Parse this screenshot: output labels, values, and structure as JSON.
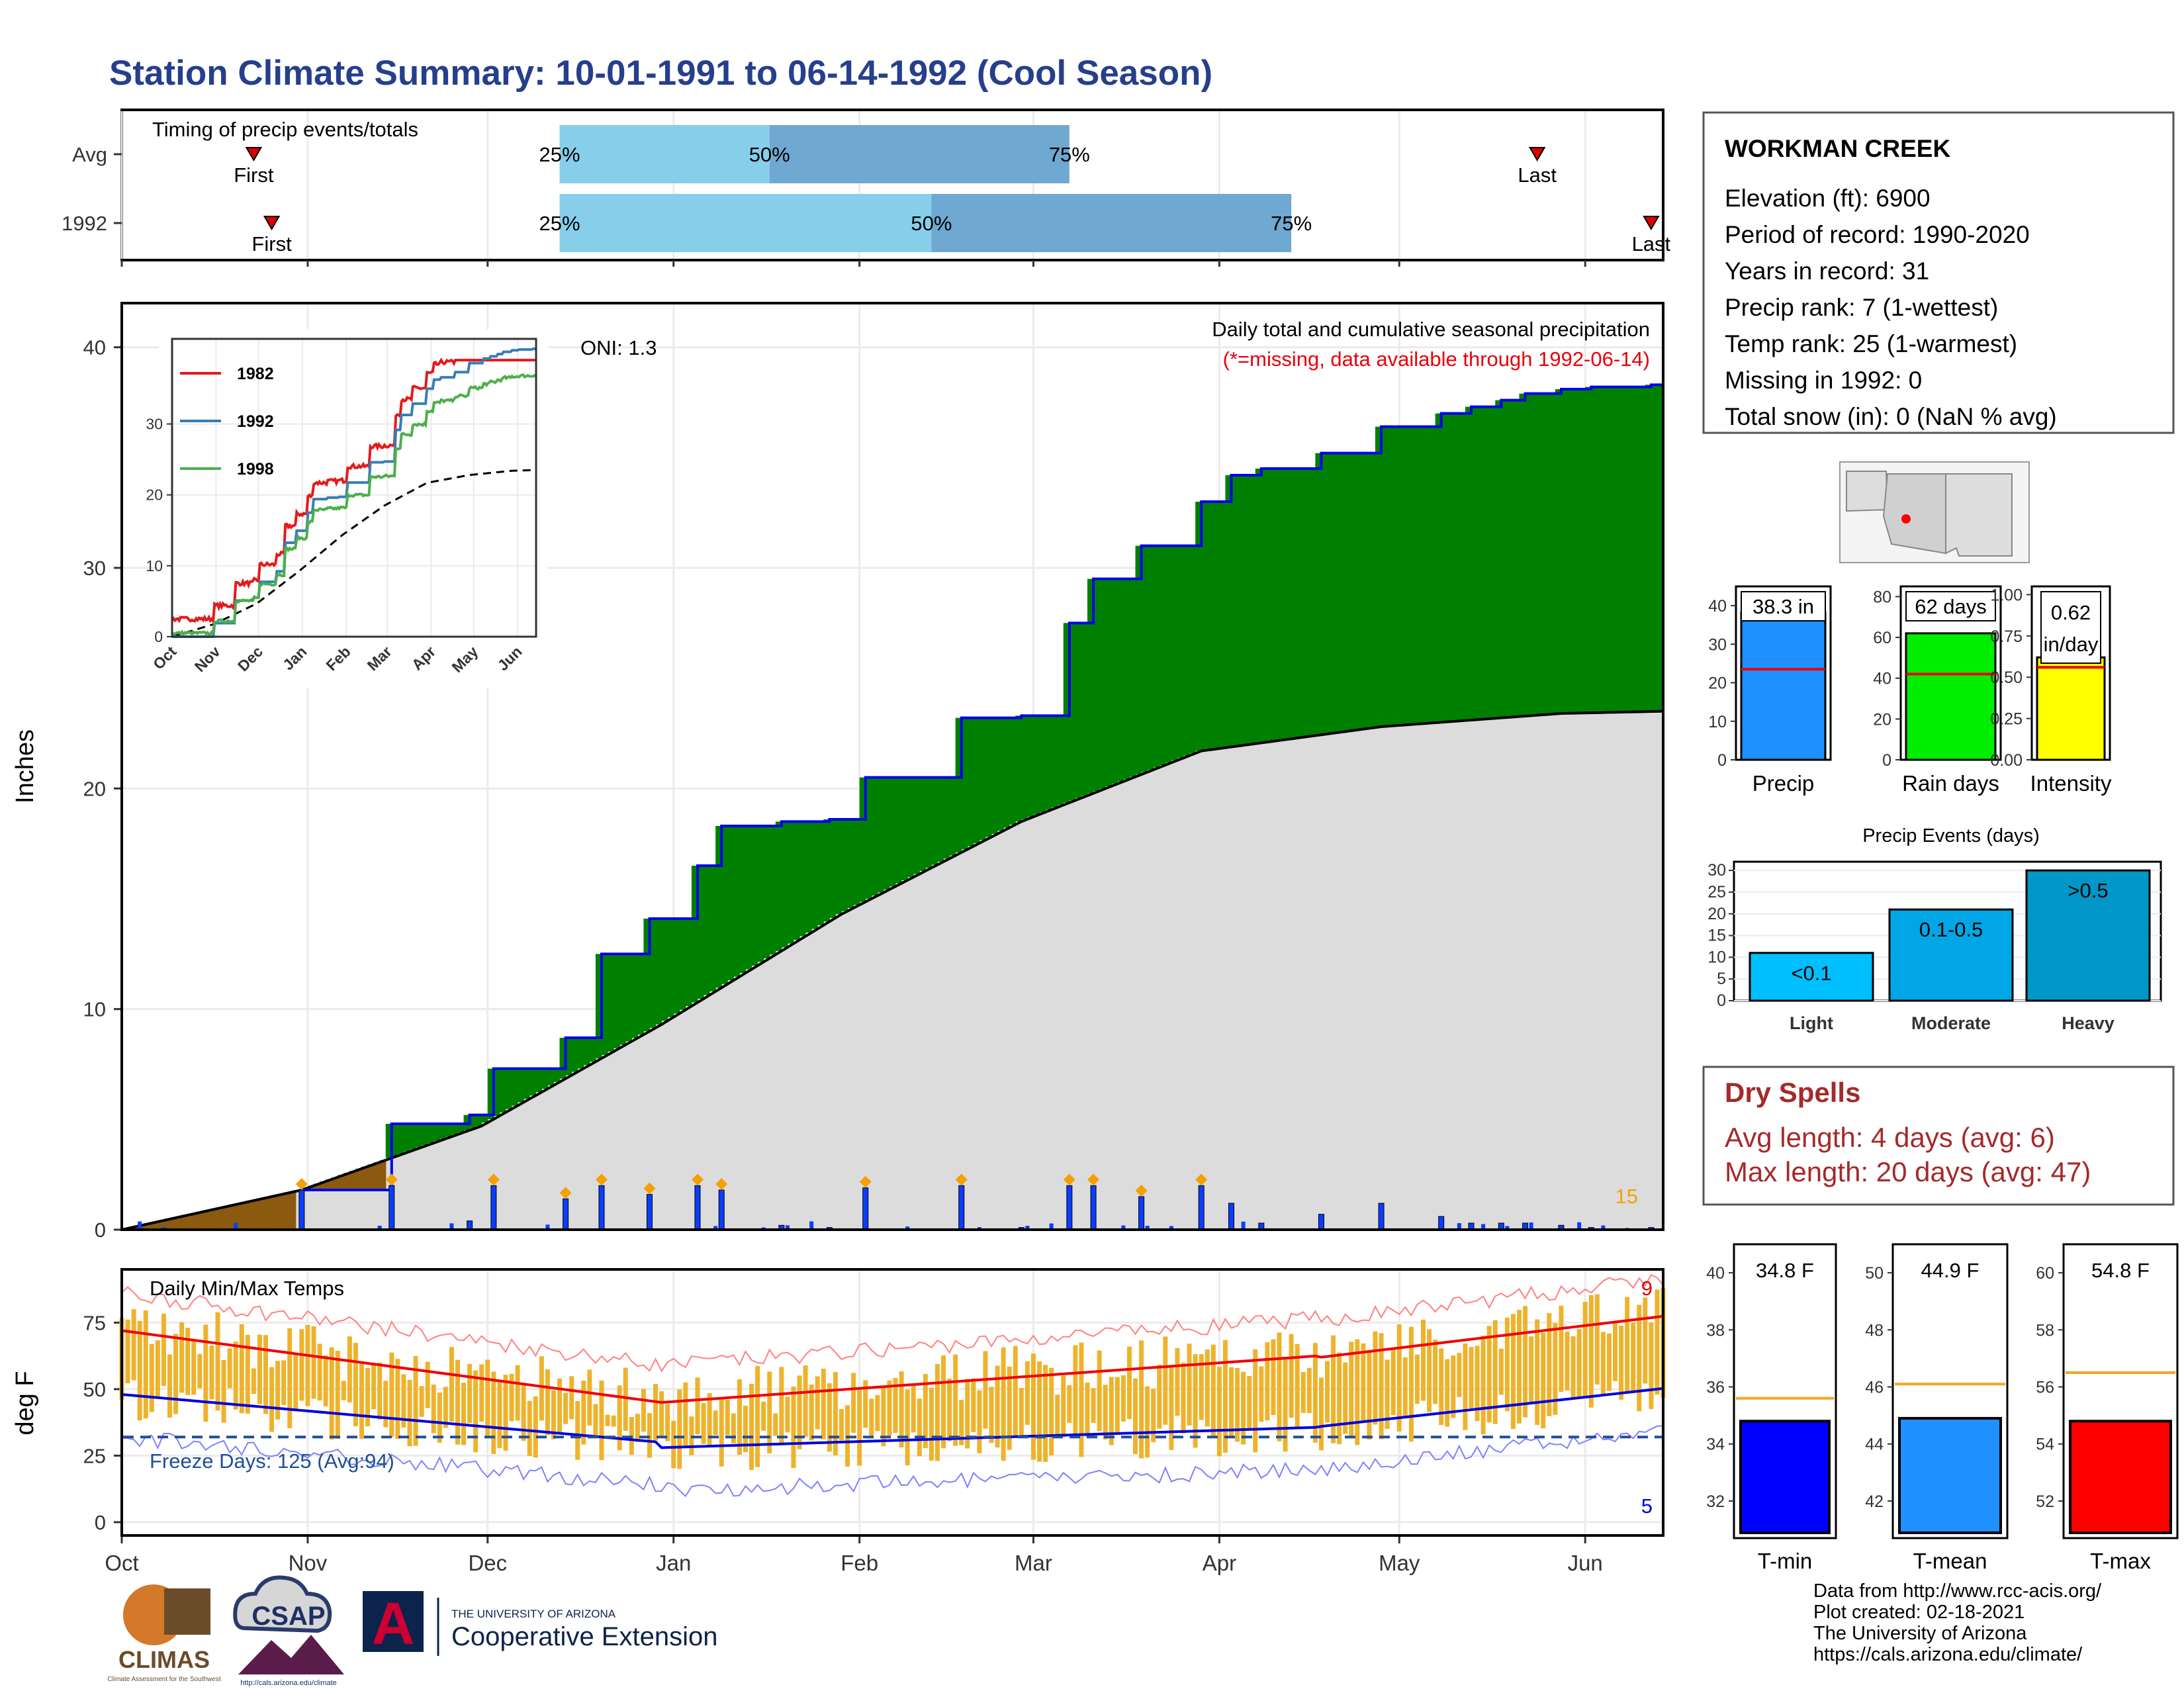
{
  "title": "Station Climate Summary: 10-01-1991 to 06-14-1992 (Cool Season)",
  "timing_panel": {
    "label": "Timing of precip events/totals",
    "rows": [
      {
        "name": "Avg",
        "first_label": "First",
        "first_doy": 22,
        "last_label": "Last",
        "last_doy": 236,
        "p25_doy": 73,
        "p50_doy": 108,
        "p75_doy": 158,
        "p25_label": "25%",
        "p50_label": "50%",
        "p75_label": "75%"
      },
      {
        "name": "1992",
        "first_label": "First",
        "first_doy": 25,
        "last_label": "Last",
        "last_doy": 255,
        "p25_doy": 73,
        "p50_doy": 135,
        "p75_doy": 195,
        "p25_label": "25%",
        "p50_label": "50%",
        "p75_label": "75%"
      }
    ]
  },
  "precip_panel": {
    "ylabel": "Inches",
    "ylim": [
      0,
      42
    ],
    "yticks": [
      0,
      10,
      20,
      30,
      40
    ],
    "caption": "Daily total and cumulative seasonal precipitation",
    "missing_note": "(*=missing, data available through 1992-06-14)",
    "oni_label": "ONI: 1.3",
    "corner_count": "15",
    "colors": {
      "above": "#008000",
      "below": "#8B5A0F",
      "normal": "#dcdcdc",
      "line": "#0000ee",
      "avg": "#000000",
      "daily": "#0b3dff",
      "marker": "#f5a000"
    }
  },
  "inset_chart": {
    "ylim": [
      0,
      42
    ],
    "yticks": [
      0,
      10,
      20,
      30
    ],
    "months": [
      "Oct",
      "Nov",
      "Dec",
      "Jan",
      "Feb",
      "Mar",
      "Apr",
      "May",
      "Jun"
    ],
    "series": [
      {
        "name": "1982",
        "color": "#e41a1c"
      },
      {
        "name": "1992",
        "color": "#377eb8"
      },
      {
        "name": "1998",
        "color": "#4daf4a"
      }
    ]
  },
  "temp_panel": {
    "ylabel": "deg F",
    "ylim": [
      -5,
      95
    ],
    "yticks": [
      0,
      25,
      50,
      75
    ],
    "label": "Daily Min/Max Temps",
    "freeze_label": "Freeze Days: 125 (Avg:94)",
    "freeze_line": 32,
    "count_hot": "9",
    "count_cold": "5"
  },
  "x_axis": {
    "months": [
      {
        "label": "Oct",
        "doy": 0
      },
      {
        "label": "Nov",
        "doy": 31
      },
      {
        "label": "Dec",
        "doy": 61
      },
      {
        "label": "Jan",
        "doy": 92
      },
      {
        "label": "Feb",
        "doy": 123
      },
      {
        "label": "Mar",
        "doy": 152
      },
      {
        "label": "Apr",
        "doy": 183
      },
      {
        "label": "May",
        "doy": 213
      },
      {
        "label": "Jun",
        "doy": 244
      }
    ]
  },
  "station": {
    "name": "WORKMAN CREEK",
    "lines": [
      "Elevation (ft): 6900",
      "Period of record: 1990-2020",
      "Years in record: 31",
      "Precip rank: 7 (1-wettest)",
      "Temp rank: 25 (1-warmest)",
      "Missing in 1992: 0",
      "Total snow (in): 0 (NaN % avg)"
    ]
  },
  "summary_bars": [
    {
      "name": "Precip",
      "value": 38.3,
      "label": "38.3 in",
      "avg": 23.5,
      "ylim": [
        0,
        45
      ],
      "yticks": [
        "0",
        "10",
        "20",
        "30",
        "40"
      ],
      "ytick_values": [
        0,
        10,
        20,
        30,
        40
      ],
      "color": "#1e90ff"
    },
    {
      "name": "Rain days",
      "value": 62,
      "label": "62 days",
      "avg": 42,
      "ylim": [
        0,
        85
      ],
      "yticks": [
        "0",
        "20",
        "40",
        "60",
        "80"
      ],
      "ytick_values": [
        0,
        20,
        40,
        60,
        80
      ],
      "color": "#00ee00"
    },
    {
      "name": "Intensity",
      "value": 0.62,
      "label": "0.62 in/day",
      "label_line1": "0.62",
      "label_line2": "in/day",
      "avg": 0.56,
      "ylim": [
        0,
        1.05
      ],
      "yticks": [
        "0.00",
        "0.25",
        "0.50",
        "0.75",
        "1.00"
      ],
      "ytick_values": [
        0,
        0.25,
        0.5,
        0.75,
        1.0
      ],
      "color": "#ffff00"
    }
  ],
  "precip_events": {
    "title": "Precip Events (days)",
    "ylim": [
      0,
      32
    ],
    "yticks": [
      "0",
      "5",
      "10",
      "15",
      "20",
      "25",
      "30"
    ],
    "ytick_values": [
      0,
      5,
      10,
      15,
      20,
      25,
      30
    ],
    "categories": [
      "Light",
      "Moderate",
      "Heavy"
    ],
    "bar_labels": [
      "<0.1",
      "0.1-0.5",
      ">0.5"
    ],
    "values": [
      11,
      21,
      30
    ],
    "colors": [
      "#00bfff",
      "#00a6e6",
      "#0096c8"
    ]
  },
  "dry_spells": {
    "title": "Dry Spells",
    "avg_line": "Avg length: 4 days (avg: 6)",
    "max_line": "Max length: 20 days (avg: 47)"
  },
  "temp_bars": [
    {
      "name": "T-min",
      "value": 34.8,
      "label": "34.8 F",
      "avg": 35.6,
      "ylim": [
        30.7,
        41
      ],
      "yticks": [
        "32",
        "34",
        "36",
        "38",
        "40"
      ],
      "ytick_values": [
        32,
        34,
        36,
        38,
        40
      ],
      "color": "#0000ff"
    },
    {
      "name": "T-mean",
      "value": 44.9,
      "label": "44.9 F",
      "avg": 46.1,
      "ylim": [
        40.7,
        51
      ],
      "yticks": [
        "42",
        "44",
        "46",
        "48",
        "50"
      ],
      "ytick_values": [
        42,
        44,
        46,
        48,
        50
      ],
      "color": "#1e90ff"
    },
    {
      "name": "T-max",
      "value": 54.8,
      "label": "54.8 F",
      "avg": 56.5,
      "ylim": [
        50.7,
        61
      ],
      "yticks": [
        "52",
        "54",
        "56",
        "58",
        "60"
      ],
      "ytick_values": [
        52,
        54,
        56,
        58,
        60
      ],
      "color": "#ff0000"
    }
  ],
  "footer": {
    "lines": [
      "Data from http://www.rcc-acis.org/",
      "Plot created: 02-18-2021",
      "The University of Arizona",
      "https://cals.arizona.edu/climate/"
    ],
    "logos": {
      "climas": "CLIMAS",
      "climas_sub": "Climate Assessment for the Southwest",
      "csap": "CSAP",
      "csap_url": "http://cals.arizona.edu/climate",
      "ua_small": "THE UNIVERSITY OF ARIZONA",
      "ua_big": "Cooperative Extension",
      "ua_letter": "A"
    }
  },
  "chart_data": {
    "type": "area",
    "title": "Station Climate Summary: 10-01-1991 to 06-14-1992 (Cool Season)",
    "ylabel": "Inches",
    "ylim": [
      0,
      42
    ],
    "x_unit": "day of season (0 = Oct 1)",
    "series": [
      {
        "name": "1992",
        "x": [
          0,
          30,
          45,
          58,
          62,
          74,
          80,
          88,
          96,
          100,
          110,
          118,
          124,
          140,
          150,
          158,
          162,
          170,
          180,
          185,
          190,
          200,
          210,
          220,
          225,
          230,
          234,
          240,
          245,
          255,
          257
        ],
        "values": [
          0,
          1.8,
          4.8,
          5.2,
          7.3,
          8.7,
          12.5,
          14.1,
          16.5,
          18.3,
          18.5,
          18.6,
          20.5,
          23.2,
          23.3,
          27.5,
          29.5,
          31.0,
          33.0,
          34.2,
          34.5,
          35.2,
          36.4,
          37.0,
          37.3,
          37.6,
          37.9,
          38.1,
          38.2,
          38.3,
          38.3
        ]
      },
      {
        "name": "Avg",
        "x": [
          0,
          30,
          60,
          90,
          120,
          150,
          180,
          210,
          240,
          257
        ],
        "values": [
          0,
          1.8,
          4.7,
          9.3,
          14.3,
          18.5,
          21.7,
          22.8,
          23.4,
          23.5
        ]
      }
    ],
    "daily_precip_max": 2.0,
    "summary": {
      "precip_in": 38.3,
      "rain_days": 62,
      "intensity_in_per_day": 0.62,
      "tmin_F": 34.8,
      "tmean_F": 44.9,
      "tmax_F": 54.8
    }
  }
}
